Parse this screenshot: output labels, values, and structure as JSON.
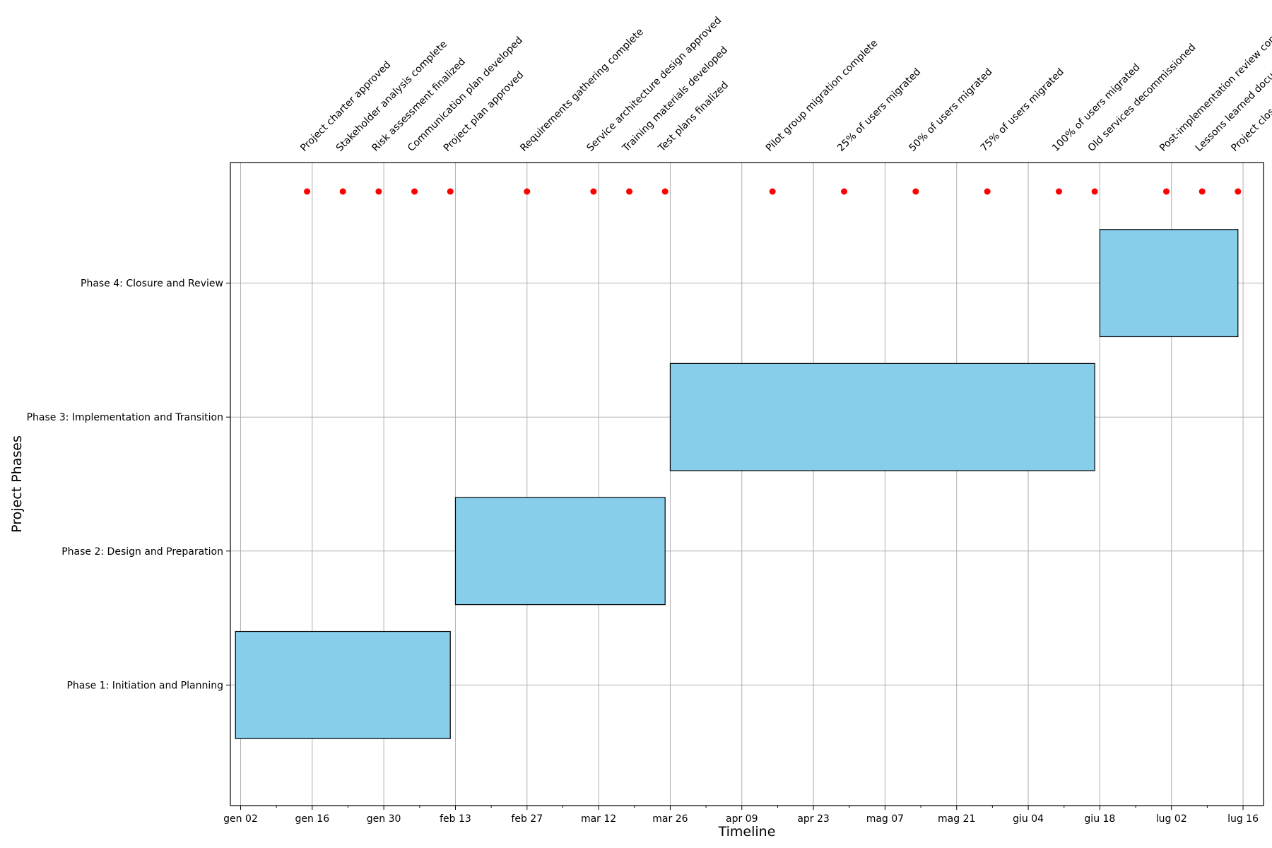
{
  "chart_data": {
    "type": "gantt",
    "title": "",
    "xlabel": "Timeline",
    "ylabel": "Project Phases",
    "xlim": [
      "2023-12-31",
      "2024-07-20"
    ],
    "x_tick_dates": [
      "2024-01-02",
      "2024-01-16",
      "2024-01-30",
      "2024-02-13",
      "2024-02-27",
      "2024-03-12",
      "2024-03-26",
      "2024-04-09",
      "2024-04-23",
      "2024-05-07",
      "2024-05-21",
      "2024-06-04",
      "2024-06-18",
      "2024-07-02",
      "2024-07-16"
    ],
    "x_tick_labels": [
      "gen 02",
      "gen 16",
      "gen 30",
      "feb 13",
      "feb 27",
      "mar 12",
      "mar 26",
      "apr 09",
      "apr 23",
      "mag 07",
      "mag 21",
      "giu 04",
      "giu 18",
      "lug 02",
      "lug 16"
    ],
    "grid": true,
    "bar_color": "#87CEEB",
    "milestone_color": "#FF0000",
    "phases": [
      {
        "name": "Phase 1: Initiation and Planning",
        "start": "2024-01-01",
        "end": "2024-02-12"
      },
      {
        "name": "Phase 2: Design and Preparation",
        "start": "2024-02-13",
        "end": "2024-03-25"
      },
      {
        "name": "Phase 3: Implementation and Transition",
        "start": "2024-03-26",
        "end": "2024-06-17"
      },
      {
        "name": "Phase 4: Closure and Review",
        "start": "2024-06-18",
        "end": "2024-07-15"
      }
    ],
    "milestones": [
      {
        "label": "Project charter approved",
        "date": "2024-01-15"
      },
      {
        "label": "Stakeholder analysis complete",
        "date": "2024-01-22"
      },
      {
        "label": "Risk assessment finalized",
        "date": "2024-01-29"
      },
      {
        "label": "Communication plan developed",
        "date": "2024-02-05"
      },
      {
        "label": "Project plan approved",
        "date": "2024-02-12"
      },
      {
        "label": "Requirements gathering complete",
        "date": "2024-02-27"
      },
      {
        "label": "Service architecture design approved",
        "date": "2024-03-11"
      },
      {
        "label": "Training materials developed",
        "date": "2024-03-18"
      },
      {
        "label": "Test plans finalized",
        "date": "2024-03-25"
      },
      {
        "label": "Pilot group migration complete",
        "date": "2024-04-15"
      },
      {
        "label": "25% of users migrated",
        "date": "2024-04-29"
      },
      {
        "label": "50% of users migrated",
        "date": "2024-05-13"
      },
      {
        "label": "75% of users migrated",
        "date": "2024-05-27"
      },
      {
        "label": "100% of users migrated",
        "date": "2024-06-10"
      },
      {
        "label": "Old services decommissioned",
        "date": "2024-06-17"
      },
      {
        "label": "Post-implementation review conducted",
        "date": "2024-07-01"
      },
      {
        "label": "Lessons learned documented",
        "date": "2024-07-08"
      },
      {
        "label": "Project closure report approved",
        "date": "2024-07-15"
      }
    ]
  }
}
